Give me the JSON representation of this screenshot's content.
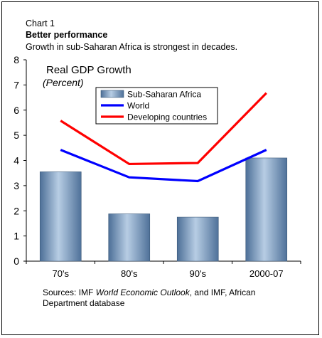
{
  "header": {
    "label": "Chart 1",
    "title": "Better performance",
    "subtitle": "Growth in sub-Saharan Africa is strongest in decades."
  },
  "chart_data": {
    "type": "bar",
    "title": "Real GDP Growth",
    "subtitle": "(Percent)",
    "categories": [
      "70's",
      "80's",
      "90's",
      "2000-07"
    ],
    "ylim": [
      0,
      8
    ],
    "yticks": [
      0,
      1,
      2,
      3,
      4,
      5,
      6,
      7,
      8
    ],
    "grid": false,
    "legend_position": "top-center",
    "series": [
      {
        "name": "Sub-Saharan Africa",
        "type": "bar",
        "color": "#7f9fc4",
        "values": [
          3.55,
          1.88,
          1.75,
          4.1
        ]
      },
      {
        "name": "World",
        "type": "line",
        "color": "#0000ff",
        "values": [
          4.42,
          3.33,
          3.18,
          4.42
        ]
      },
      {
        "name": "Developing countries",
        "type": "line",
        "color": "#ff0000",
        "values": [
          5.58,
          3.86,
          3.9,
          6.68
        ]
      }
    ]
  },
  "source": {
    "prefix": "Sources: IMF ",
    "publication": "World Economic Outlook",
    "suffix": ", and IMF, African Department database"
  }
}
